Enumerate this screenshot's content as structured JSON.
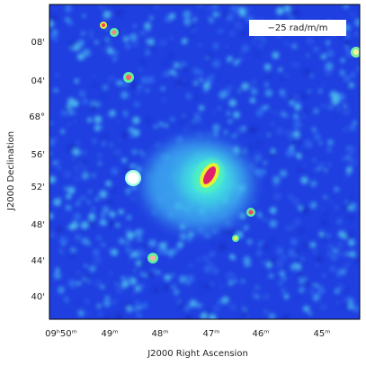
{
  "image": {
    "legend_label": "−25 rad/m/m",
    "x_axis": {
      "label": "J2000 Right Ascension",
      "ticks": [
        "09ʰ50ᵐ",
        "49ᵐ",
        "48ᵐ",
        "47ᵐ",
        "46ᵐ",
        "45ᵐ"
      ]
    },
    "y_axis": {
      "label": "J2000 Declination",
      "ticks": [
        "08'",
        "04'",
        "68°",
        "56'",
        "52'",
        "48'",
        "44'",
        "40'"
      ]
    }
  }
}
